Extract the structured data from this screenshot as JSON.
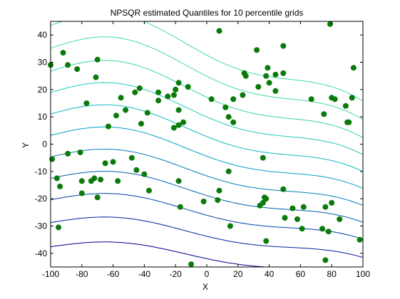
{
  "chart_data": {
    "type": "scatter",
    "title": "NPSQR estimated Quantiles for 10 percentile grids",
    "xlabel": "X",
    "ylabel": "Y",
    "xlim": [
      -100,
      100
    ],
    "ylim": [
      -45,
      45
    ],
    "x_ticks": [
      -100,
      -80,
      -60,
      -40,
      -20,
      0,
      20,
      40,
      60,
      80,
      100
    ],
    "y_ticks": [
      -40,
      -30,
      -20,
      -10,
      0,
      10,
      20,
      30,
      40
    ],
    "grid": false,
    "legend": "none",
    "point_color": "#0a7a0a",
    "contour_colors": [
      "#00008c",
      "#00209a",
      "#0040a8",
      "#0060b0",
      "#0080b8",
      "#00a0c0",
      "#10b8c0",
      "#20c8b8",
      "#30d4b0",
      "#40dca8"
    ],
    "quantile_offsets": [
      -40,
      -31.5,
      -23.5,
      -16,
      -8.5,
      -1,
      6.5,
      14,
      21.5,
      29.5,
      37.5
    ],
    "points": [
      {
        "x": -100,
        "y": 29
      },
      {
        "x": -99,
        "y": -5.5
      },
      {
        "x": -96,
        "y": -12.5
      },
      {
        "x": -95,
        "y": -30.5
      },
      {
        "x": -94,
        "y": -15.5
      },
      {
        "x": -92,
        "y": 33.5
      },
      {
        "x": -89,
        "y": 29
      },
      {
        "x": -89,
        "y": -3.5
      },
      {
        "x": -83,
        "y": 27.5
      },
      {
        "x": -81,
        "y": -3
      },
      {
        "x": -80,
        "y": -13.5
      },
      {
        "x": -80,
        "y": -18
      },
      {
        "x": -77,
        "y": 15
      },
      {
        "x": -74,
        "y": -13.5
      },
      {
        "x": -72,
        "y": -12.5
      },
      {
        "x": -71,
        "y": 24.5
      },
      {
        "x": -70,
        "y": 31
      },
      {
        "x": -70,
        "y": -19.5
      },
      {
        "x": -68,
        "y": -13
      },
      {
        "x": -65,
        "y": -7
      },
      {
        "x": -63,
        "y": 6.5
      },
      {
        "x": -60,
        "y": -6.5
      },
      {
        "x": -58,
        "y": 10.5
      },
      {
        "x": -57,
        "y": -13.5
      },
      {
        "x": -55,
        "y": 17
      },
      {
        "x": -52,
        "y": 12.5
      },
      {
        "x": -48,
        "y": -5
      },
      {
        "x": -46,
        "y": 19
      },
      {
        "x": -45,
        "y": -9.5
      },
      {
        "x": -43,
        "y": 20.5
      },
      {
        "x": -42,
        "y": 7.5
      },
      {
        "x": -40,
        "y": -11
      },
      {
        "x": -38,
        "y": 11.5
      },
      {
        "x": -37,
        "y": -17
      },
      {
        "x": -31,
        "y": 19
      },
      {
        "x": -31,
        "y": 16
      },
      {
        "x": -25,
        "y": 17.5
      },
      {
        "x": -21,
        "y": 6
      },
      {
        "x": -21,
        "y": 18
      },
      {
        "x": -20,
        "y": 20
      },
      {
        "x": -18,
        "y": 22.5
      },
      {
        "x": -18,
        "y": 12.5
      },
      {
        "x": -18,
        "y": 7
      },
      {
        "x": -18,
        "y": -13.5
      },
      {
        "x": -17,
        "y": -23
      },
      {
        "x": -15,
        "y": 8
      },
      {
        "x": -12,
        "y": 21
      },
      {
        "x": -10,
        "y": -44
      },
      {
        "x": -2,
        "y": -21
      },
      {
        "x": 3,
        "y": 16.5
      },
      {
        "x": 7,
        "y": -20.5
      },
      {
        "x": 8,
        "y": 41.5
      },
      {
        "x": 8,
        "y": -17
      },
      {
        "x": 12,
        "y": 13.5
      },
      {
        "x": 14,
        "y": 10
      },
      {
        "x": 14,
        "y": -10
      },
      {
        "x": 15,
        "y": -30
      },
      {
        "x": 17,
        "y": 16.5
      },
      {
        "x": 17,
        "y": 8
      },
      {
        "x": 23,
        "y": 18
      },
      {
        "x": 24,
        "y": 26
      },
      {
        "x": 25,
        "y": 25
      },
      {
        "x": 32,
        "y": 34.5
      },
      {
        "x": 33,
        "y": 21
      },
      {
        "x": 34,
        "y": -22.5
      },
      {
        "x": 36,
        "y": -5
      },
      {
        "x": 36,
        "y": -21.5
      },
      {
        "x": 37,
        "y": -19.5
      },
      {
        "x": 38,
        "y": 25
      },
      {
        "x": 38,
        "y": -20
      },
      {
        "x": 38,
        "y": -35.5
      },
      {
        "x": 39,
        "y": 28
      },
      {
        "x": 40,
        "y": 22.5
      },
      {
        "x": 44,
        "y": 19.5
      },
      {
        "x": 44,
        "y": 25.5
      },
      {
        "x": 49,
        "y": 36
      },
      {
        "x": 49,
        "y": 26
      },
      {
        "x": 49,
        "y": -16.5
      },
      {
        "x": 50,
        "y": -27
      },
      {
        "x": 55,
        "y": -23.5
      },
      {
        "x": 58,
        "y": -27.5
      },
      {
        "x": 61,
        "y": -31
      },
      {
        "x": 62,
        "y": -23
      },
      {
        "x": 67,
        "y": 16.5
      },
      {
        "x": 74,
        "y": -31
      },
      {
        "x": 75,
        "y": 11
      },
      {
        "x": 76,
        "y": -42.5
      },
      {
        "x": 76,
        "y": -23
      },
      {
        "x": 78,
        "y": -32
      },
      {
        "x": 79,
        "y": 44
      },
      {
        "x": 80,
        "y": 17
      },
      {
        "x": 80,
        "y": -21.5
      },
      {
        "x": 82,
        "y": 16.5
      },
      {
        "x": 85,
        "y": -27.5
      },
      {
        "x": 89,
        "y": 14
      },
      {
        "x": 90,
        "y": 8
      },
      {
        "x": 91,
        "y": 8
      },
      {
        "x": 93,
        "y": 17
      },
      {
        "x": 94,
        "y": 28
      },
      {
        "x": 98,
        "y": -35
      }
    ]
  }
}
